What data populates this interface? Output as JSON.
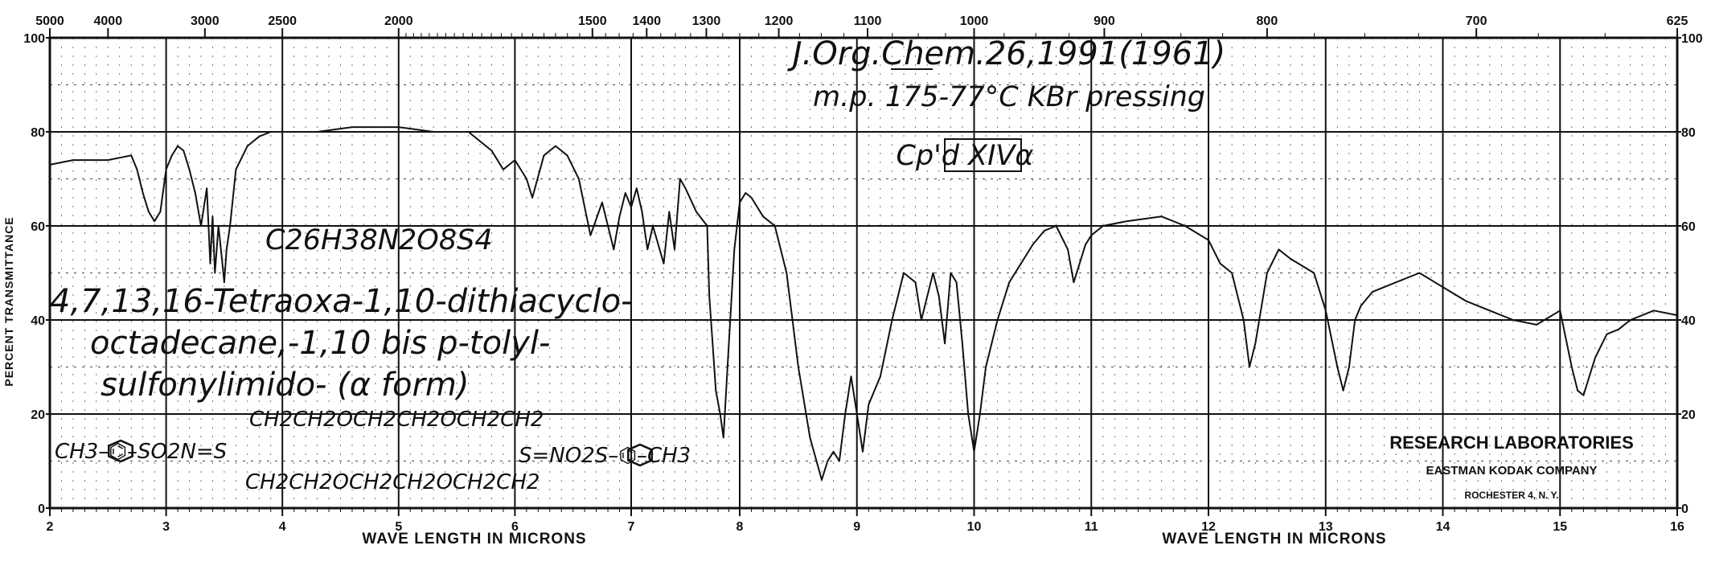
{
  "chart_data": {
    "type": "line",
    "xlabel": "WAVE LENGTH IN MICRONS",
    "ylabel": "PERCENT TRANSMITTANCE",
    "xlim": [
      2,
      16
    ],
    "ylim": [
      0,
      100
    ],
    "x_ticks": [
      "2",
      "3",
      "4",
      "5",
      "6",
      "7",
      "8",
      "9",
      "10",
      "11",
      "12",
      "13",
      "14",
      "15",
      "16"
    ],
    "y_ticks_left": [
      "0",
      "20",
      "40",
      "60",
      "80",
      "100"
    ],
    "y_ticks_right": [
      "0",
      "20",
      "40",
      "60",
      "80",
      "100"
    ],
    "wavenumber_ticks": [
      "5000",
      "4000",
      "3000",
      "2500",
      "2000",
      "1500",
      "1400",
      "1300",
      "1200",
      "1100",
      "1000",
      "900",
      "800",
      "700",
      "625"
    ],
    "series": [
      {
        "x": [
          2.0,
          2.2,
          2.5,
          2.7,
          2.75,
          2.8,
          2.85,
          2.9,
          2.95,
          3.0,
          3.05,
          3.1,
          3.15,
          3.2,
          3.25,
          3.3,
          3.35,
          3.38,
          3.4,
          3.42,
          3.45,
          3.48,
          3.5,
          3.52,
          3.55,
          3.6,
          3.7,
          3.8,
          3.9,
          4.0,
          4.3,
          4.6,
          5.0,
          5.3,
          5.6,
          5.8,
          5.9,
          6.0,
          6.1,
          6.15,
          6.25,
          6.35,
          6.45,
          6.55,
          6.65,
          6.75,
          6.8,
          6.85,
          6.9,
          6.95,
          7.0,
          7.05,
          7.1,
          7.15,
          7.2,
          7.3,
          7.35,
          7.4,
          7.45,
          7.5,
          7.6,
          7.7,
          7.72,
          7.75,
          7.78,
          7.82,
          7.85,
          7.9,
          7.95,
          8.0,
          8.05,
          8.1,
          8.2,
          8.3,
          8.4,
          8.5,
          8.6,
          8.7,
          8.75,
          8.8,
          8.85,
          8.9,
          8.95,
          9.0,
          9.05,
          9.1,
          9.15,
          9.2,
          9.3,
          9.4,
          9.5,
          9.55,
          9.6,
          9.65,
          9.7,
          9.75,
          9.8,
          9.85,
          9.9,
          9.95,
          10.0,
          10.05,
          10.1,
          10.2,
          10.3,
          10.4,
          10.5,
          10.6,
          10.7,
          10.8,
          10.85,
          10.9,
          10.95,
          11.0,
          11.1,
          11.3,
          11.6,
          11.8,
          12.0,
          12.1,
          12.2,
          12.3,
          12.35,
          12.4,
          12.5,
          12.6,
          12.7,
          12.9,
          13.0,
          13.1,
          13.15,
          13.2,
          13.25,
          13.3,
          13.4,
          13.6,
          13.8,
          14.0,
          14.2,
          14.4,
          14.6,
          14.8,
          15.0,
          15.1,
          15.15,
          15.2,
          15.3,
          15.4,
          15.5,
          15.6,
          15.8,
          16.0
        ],
        "y": [
          73,
          74,
          74,
          75,
          72,
          67,
          63,
          61,
          63,
          72,
          75,
          77,
          76,
          72,
          67,
          60,
          68,
          52,
          62,
          50,
          60,
          53,
          48,
          55,
          60,
          72,
          77,
          79,
          80,
          80,
          80,
          81,
          81,
          80,
          80,
          76,
          72,
          74,
          70,
          66,
          75,
          77,
          75,
          70,
          58,
          65,
          60,
          55,
          62,
          67,
          64,
          68,
          63,
          55,
          60,
          52,
          63,
          55,
          70,
          68,
          63,
          60,
          45,
          35,
          25,
          20,
          15,
          35,
          55,
          65,
          67,
          66,
          62,
          60,
          50,
          30,
          15,
          6,
          10,
          12,
          10,
          20,
          28,
          20,
          12,
          22,
          25,
          28,
          40,
          50,
          48,
          40,
          45,
          50,
          45,
          35,
          50,
          48,
          35,
          20,
          12,
          20,
          30,
          40,
          48,
          52,
          56,
          59,
          60,
          55,
          48,
          52,
          56,
          58,
          60,
          61,
          62,
          60,
          57,
          52,
          50,
          40,
          30,
          35,
          50,
          55,
          53,
          50,
          42,
          30,
          25,
          30,
          40,
          43,
          46,
          48,
          50,
          47,
          44,
          42,
          40,
          39,
          42,
          30,
          25,
          24,
          32,
          37,
          38,
          40,
          42,
          41
        ]
      }
    ],
    "grid": true,
    "legend": "none"
  },
  "annotations": {
    "reference_line1": "J.Org.Chem.26,1991(1961)",
    "reference_line2": "m.p. 175-77°C  KBr pressing",
    "compound_code": "Cp'd XIVα",
    "formula": "C26H38N2O8S4",
    "name_line1": "4,7,13,16-Tetraoxa-1,10-dithiacyclo-",
    "name_line2": "octadecane,-1,10 bis p-tolyl-",
    "name_line3": "sulfonylimido- (α form)",
    "struct_left": "CH3–⌬–SO2N=S",
    "struct_top": "CH2CH2OCH2CH2OCH2CH2",
    "struct_bottom": "CH2CH2OCH2CH2OCH2CH2",
    "struct_right": "S=NO2S–⌬–CH3"
  },
  "lab": {
    "name": "RESEARCH LABORATORIES",
    "company": "EASTMAN KODAK COMPANY",
    "city": "ROCHESTER 4, N. Y."
  },
  "colors": {
    "ink": "#111111",
    "paper": "#ffffff"
  }
}
